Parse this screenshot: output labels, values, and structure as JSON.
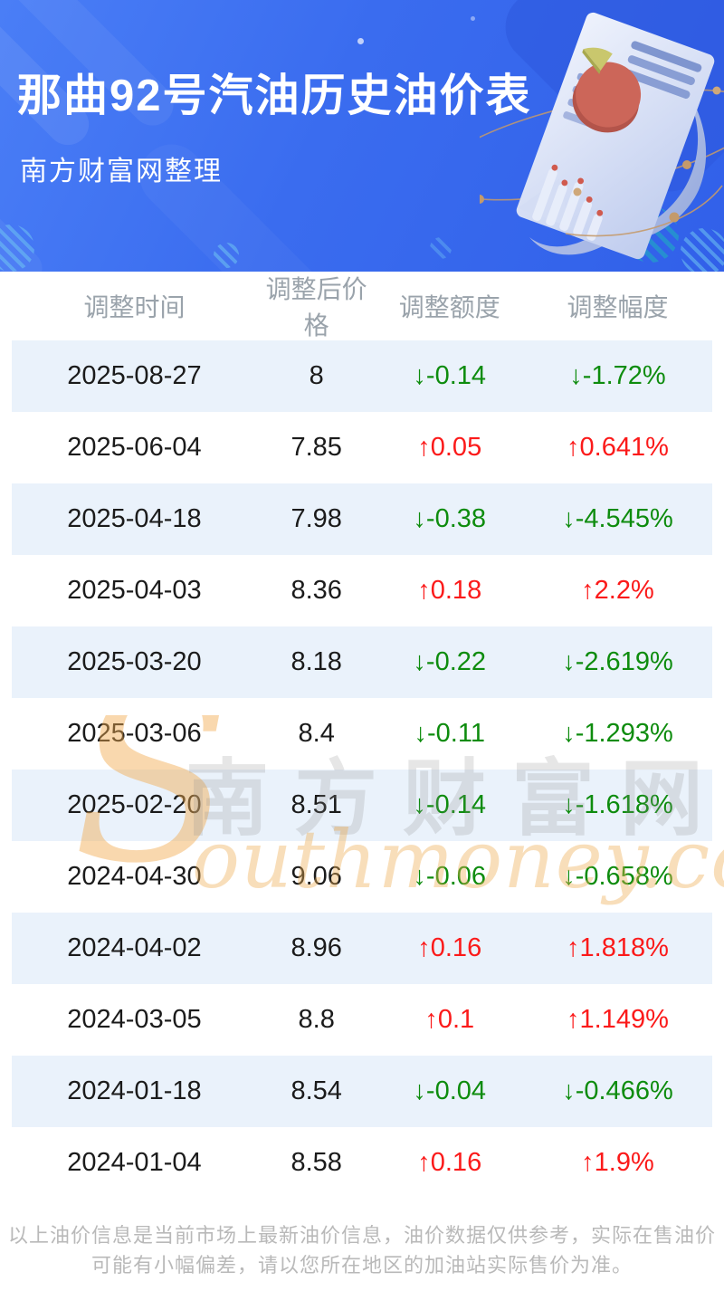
{
  "header": {
    "title": "那曲92号汽油历史油价表",
    "subtitle": "南方财富网整理",
    "illustration": "report-paper-with-pie-and-bar-chart"
  },
  "table": {
    "columns": [
      "调整时间",
      "调整后价格",
      "调整额度",
      "调整幅度"
    ],
    "rows": [
      {
        "date": "2025-08-27",
        "price": "8",
        "amount": "↓-0.14",
        "rate": "↓-1.72%",
        "direction": "down"
      },
      {
        "date": "2025-06-04",
        "price": "7.85",
        "amount": "↑0.05",
        "rate": "↑0.641%",
        "direction": "up"
      },
      {
        "date": "2025-04-18",
        "price": "7.98",
        "amount": "↓-0.38",
        "rate": "↓-4.545%",
        "direction": "down"
      },
      {
        "date": "2025-04-03",
        "price": "8.36",
        "amount": "↑0.18",
        "rate": "↑2.2%",
        "direction": "up"
      },
      {
        "date": "2025-03-20",
        "price": "8.18",
        "amount": "↓-0.22",
        "rate": "↓-2.619%",
        "direction": "down"
      },
      {
        "date": "2025-03-06",
        "price": "8.4",
        "amount": "↓-0.11",
        "rate": "↓-1.293%",
        "direction": "down"
      },
      {
        "date": "2025-02-20",
        "price": "8.51",
        "amount": "↓-0.14",
        "rate": "↓-1.618%",
        "direction": "down"
      },
      {
        "date": "2024-04-30",
        "price": "9.06",
        "amount": "↓-0.06",
        "rate": "↓-0.658%",
        "direction": "down"
      },
      {
        "date": "2024-04-02",
        "price": "8.96",
        "amount": "↑0.16",
        "rate": "↑1.818%",
        "direction": "up"
      },
      {
        "date": "2024-03-05",
        "price": "8.8",
        "amount": "↑0.1",
        "rate": "↑1.149%",
        "direction": "up"
      },
      {
        "date": "2024-01-18",
        "price": "8.54",
        "amount": "↓-0.04",
        "rate": "↓-0.466%",
        "direction": "down"
      },
      {
        "date": "2024-01-04",
        "price": "8.58",
        "amount": "↑0.16",
        "rate": "↑1.9%",
        "direction": "up"
      }
    ]
  },
  "watermark": {
    "initial": "S",
    "cn": "南方财富网",
    "en": "outhmoney.com"
  },
  "footer": {
    "text": "以上油价信息是当前市场上最新油价信息，油价数据仅供参考，实际在售油价可能有小幅偏差，请以您所在地区的加油站实际售价为准。"
  },
  "colors": {
    "banner_blue": "#3a6cef",
    "row_alt_blue": "#eaf2fb",
    "up_red": "#fb1a1a",
    "down_green": "#0e8c0e",
    "header_gray": "#9aa3ab",
    "watermark_orange": "#eeae54"
  }
}
